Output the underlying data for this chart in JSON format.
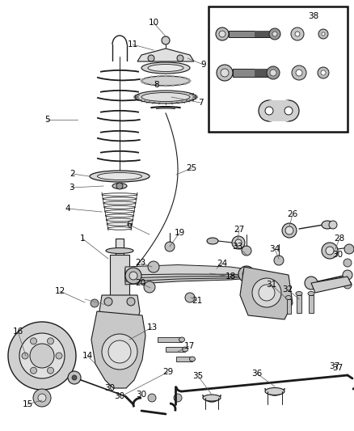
{
  "bg_color": "#ffffff",
  "line_color": "#1a1a1a",
  "label_color": "#000000",
  "font_size": 7.5,
  "figsize": [
    4.38,
    5.33
  ],
  "dpi": 100
}
